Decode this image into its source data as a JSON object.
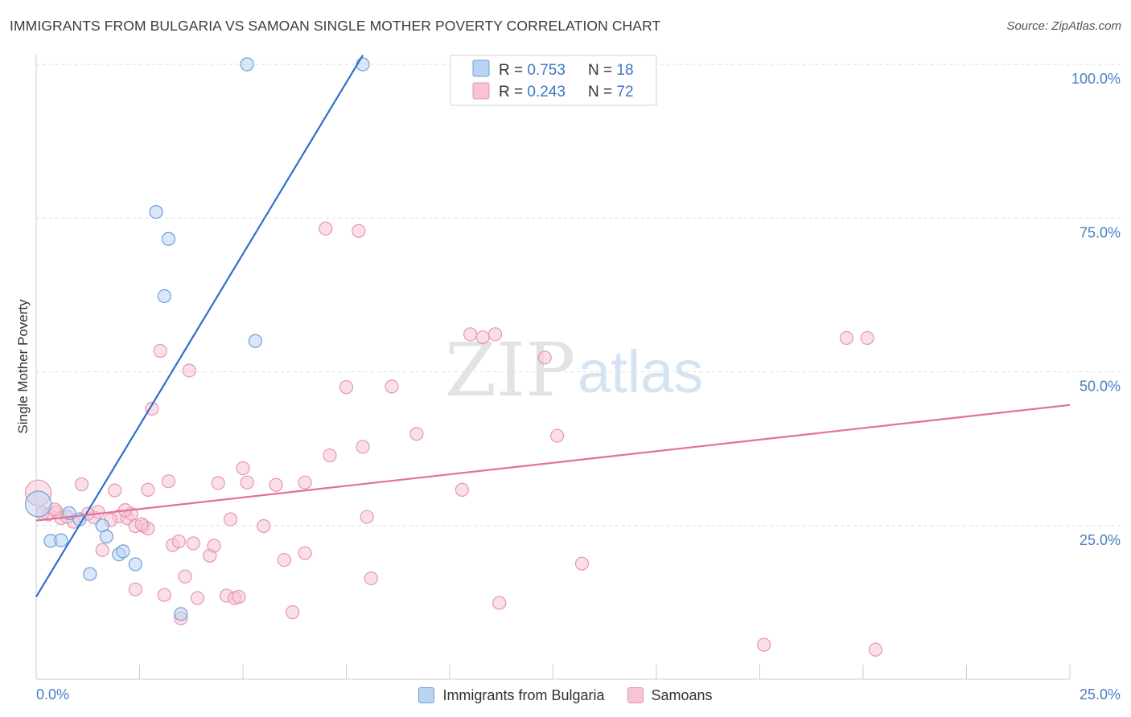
{
  "title": "IMMIGRANTS FROM BULGARIA VS SAMOAN SINGLE MOTHER POVERTY CORRELATION CHART",
  "source": "Source: ZipAtlas.com",
  "watermark": {
    "zip": "ZIP",
    "atlas": "atlas"
  },
  "colors": {
    "blue_fill": "#b9d3f3",
    "blue_stroke": "#6f9fd8",
    "blue_line": "#2f6fcd",
    "pink_fill": "#f8c4d4",
    "pink_stroke": "#e597b0",
    "pink_line": "#e2709a",
    "axis_text": "#4a7ec2",
    "grid": "#dddddd"
  },
  "legend": {
    "rows": [
      {
        "r_label": "R = ",
        "r_value": "0.753",
        "n_label": "N = ",
        "n_value": "18"
      },
      {
        "r_label": "R = ",
        "r_value": "0.243",
        "n_label": "N = ",
        "n_value": "72"
      }
    ]
  },
  "bottom_legend": {
    "series1": "Immigrants from Bulgaria",
    "series2": "Samoans"
  },
  "chart_data": {
    "type": "scatter",
    "title": "IMMIGRANTS FROM BULGARIA VS SAMOAN SINGLE MOTHER POVERTY CORRELATION CHART",
    "xlabel": "",
    "ylabel": "Single Mother Poverty",
    "xlim": [
      0,
      25
    ],
    "ylim": [
      0,
      100
    ],
    "x_tick_labels": [
      "0.0%",
      "25.0%"
    ],
    "y_tick_labels": [
      "25.0%",
      "50.0%",
      "75.0%",
      "100.0%"
    ],
    "y_ticks": [
      25,
      50,
      75,
      100
    ],
    "grid": true,
    "legend_position": "top-center",
    "series": [
      {
        "name": "Immigrants from Bulgaria",
        "color": "#b9d3f3",
        "trendline": {
          "x": [
            0,
            7.9
          ],
          "y": [
            13.4,
            101.5
          ]
        },
        "points": [
          {
            "x": 0.05,
            "y": 28.5,
            "big": true
          },
          {
            "x": 0.35,
            "y": 22.5
          },
          {
            "x": 0.6,
            "y": 22.6
          },
          {
            "x": 0.8,
            "y": 27.0
          },
          {
            "x": 1.05,
            "y": 26.0
          },
          {
            "x": 1.3,
            "y": 17.1
          },
          {
            "x": 1.6,
            "y": 25.0
          },
          {
            "x": 1.7,
            "y": 23.2
          },
          {
            "x": 2.0,
            "y": 20.3
          },
          {
            "x": 2.1,
            "y": 20.8
          },
          {
            "x": 2.4,
            "y": 18.7
          },
          {
            "x": 2.9,
            "y": 76.0
          },
          {
            "x": 3.2,
            "y": 71.6
          },
          {
            "x": 3.1,
            "y": 62.3
          },
          {
            "x": 3.5,
            "y": 10.6
          },
          {
            "x": 5.1,
            "y": 100.0
          },
          {
            "x": 5.3,
            "y": 55.0
          },
          {
            "x": 7.9,
            "y": 100.0
          }
        ]
      },
      {
        "name": "Samoans",
        "color": "#f8c4d4",
        "trendline": {
          "x": [
            0,
            25
          ],
          "y": [
            25.8,
            44.6
          ]
        },
        "points": [
          {
            "x": 0.05,
            "y": 30.3,
            "big": true
          },
          {
            "x": 0.3,
            "y": 26.8
          },
          {
            "x": 0.5,
            "y": 27.2
          },
          {
            "x": 0.6,
            "y": 26.2
          },
          {
            "x": 0.9,
            "y": 25.6
          },
          {
            "x": 1.1,
            "y": 31.7
          },
          {
            "x": 1.4,
            "y": 26.3
          },
          {
            "x": 1.5,
            "y": 27.2
          },
          {
            "x": 1.6,
            "y": 21.0
          },
          {
            "x": 1.9,
            "y": 30.7
          },
          {
            "x": 2.0,
            "y": 26.5
          },
          {
            "x": 2.2,
            "y": 26.2
          },
          {
            "x": 2.3,
            "y": 26.9
          },
          {
            "x": 2.4,
            "y": 24.9
          },
          {
            "x": 2.4,
            "y": 14.6
          },
          {
            "x": 2.6,
            "y": 24.9
          },
          {
            "x": 2.7,
            "y": 24.5
          },
          {
            "x": 2.7,
            "y": 30.8
          },
          {
            "x": 2.8,
            "y": 44.0
          },
          {
            "x": 3.0,
            "y": 53.4
          },
          {
            "x": 3.1,
            "y": 13.7
          },
          {
            "x": 3.2,
            "y": 32.2
          },
          {
            "x": 3.3,
            "y": 21.8
          },
          {
            "x": 3.5,
            "y": 9.9
          },
          {
            "x": 3.6,
            "y": 16.7
          },
          {
            "x": 3.7,
            "y": 50.2
          },
          {
            "x": 3.8,
            "y": 22.1
          },
          {
            "x": 3.9,
            "y": 13.2
          },
          {
            "x": 4.2,
            "y": 20.1
          },
          {
            "x": 4.3,
            "y": 21.7
          },
          {
            "x": 4.4,
            "y": 31.9
          },
          {
            "x": 4.6,
            "y": 13.6
          },
          {
            "x": 4.7,
            "y": 26.0
          },
          {
            "x": 4.8,
            "y": 13.2
          },
          {
            "x": 4.9,
            "y": 13.4
          },
          {
            "x": 5.0,
            "y": 34.3
          },
          {
            "x": 5.1,
            "y": 32.0
          },
          {
            "x": 5.5,
            "y": 24.9
          },
          {
            "x": 5.8,
            "y": 31.6
          },
          {
            "x": 6.0,
            "y": 19.4
          },
          {
            "x": 6.2,
            "y": 10.9
          },
          {
            "x": 6.5,
            "y": 32.0
          },
          {
            "x": 6.5,
            "y": 20.5
          },
          {
            "x": 7.1,
            "y": 36.4
          },
          {
            "x": 7.5,
            "y": 47.5
          },
          {
            "x": 7.8,
            "y": 72.9
          },
          {
            "x": 7.9,
            "y": 37.8
          },
          {
            "x": 8.0,
            "y": 26.4
          },
          {
            "x": 8.1,
            "y": 16.4
          },
          {
            "x": 8.6,
            "y": 47.6
          },
          {
            "x": 9.2,
            "y": 39.9
          },
          {
            "x": 10.3,
            "y": 30.8
          },
          {
            "x": 10.5,
            "y": 56.1
          },
          {
            "x": 10.8,
            "y": 55.6
          },
          {
            "x": 11.1,
            "y": 56.1
          },
          {
            "x": 11.2,
            "y": 12.4
          },
          {
            "x": 12.3,
            "y": 52.3
          },
          {
            "x": 12.6,
            "y": 39.6
          },
          {
            "x": 13.2,
            "y": 18.8
          },
          {
            "x": 17.6,
            "y": 5.6
          },
          {
            "x": 19.6,
            "y": 55.5
          },
          {
            "x": 20.1,
            "y": 55.5
          },
          {
            "x": 20.3,
            "y": 4.8
          },
          {
            "x": 7.0,
            "y": 73.3
          },
          {
            "x": 0.15,
            "y": 27.0
          },
          {
            "x": 0.45,
            "y": 27.6
          },
          {
            "x": 0.75,
            "y": 26.4
          },
          {
            "x": 1.25,
            "y": 26.9
          },
          {
            "x": 1.8,
            "y": 25.9
          },
          {
            "x": 2.15,
            "y": 27.5
          },
          {
            "x": 2.55,
            "y": 25.2
          },
          {
            "x": 3.45,
            "y": 22.4
          }
        ]
      }
    ]
  }
}
